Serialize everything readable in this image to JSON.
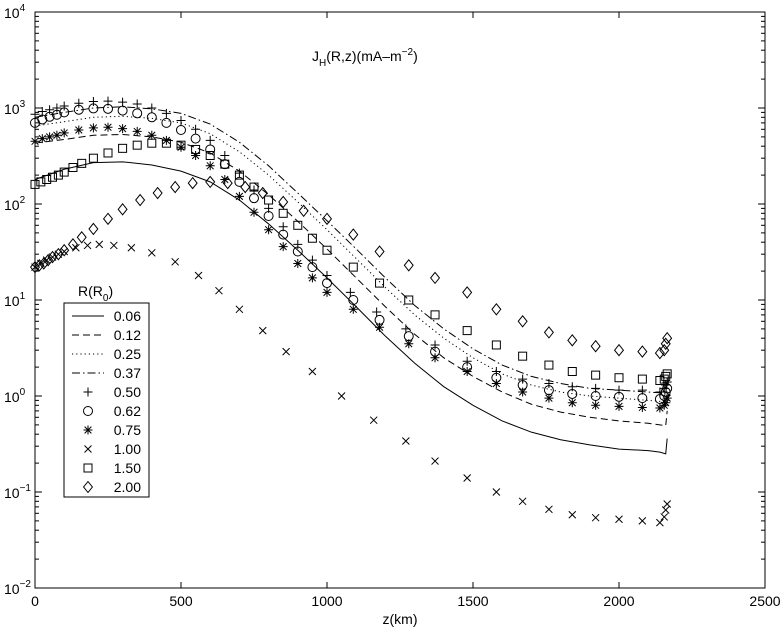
{
  "chart_data": {
    "type": "line",
    "title": "J_H(R,z)(mA–m^-2)",
    "title_parts": {
      "main": "J",
      "sub": "H",
      "args": "(R,z)(mA–m",
      "sup": "−2",
      "close": ")"
    },
    "xlabel": "z(km)",
    "ylabel": "",
    "xlim": [
      0,
      2500
    ],
    "ylim": [
      0.01,
      10000
    ],
    "yscale": "log",
    "grid": false,
    "x_ticks": [
      "0",
      "500",
      "1000",
      "1500",
      "2000",
      "2500"
    ],
    "y_ticks": [
      {
        "base": "10",
        "exp": "−2"
      },
      {
        "base": "10",
        "exp": "−1"
      },
      {
        "base": "10",
        "exp": "0"
      },
      {
        "base": "10",
        "exp": "1"
      },
      {
        "base": "10",
        "exp": "2"
      },
      {
        "base": "10",
        "exp": "3"
      },
      {
        "base": "10",
        "exp": "4"
      }
    ],
    "legend_title": {
      "main": "R(R",
      "sub": "0",
      "close": ")"
    },
    "legend_position": "left",
    "series": [
      {
        "name": "0.06",
        "style": "solid",
        "x": [
          0,
          100,
          200,
          300,
          400,
          500,
          600,
          700,
          800,
          900,
          1000,
          1100,
          1200,
          1300,
          1400,
          1500,
          1600,
          1700,
          1800,
          1900,
          2000,
          2100,
          2140,
          2160,
          2165
        ],
        "y": [
          180,
          230,
          270,
          275,
          255,
          220,
          170,
          110,
          62,
          33,
          17,
          8.5,
          4.2,
          2.2,
          1.25,
          0.8,
          0.55,
          0.42,
          0.35,
          0.31,
          0.28,
          0.27,
          0.26,
          0.25,
          0.36
        ]
      },
      {
        "name": "0.12",
        "style": "dashed",
        "x": [
          0,
          100,
          200,
          300,
          400,
          500,
          600,
          700,
          800,
          900,
          1000,
          1100,
          1200,
          1300,
          1400,
          1500,
          1600,
          1700,
          1800,
          1900,
          2000,
          2100,
          2140,
          2160,
          2165
        ],
        "y": [
          430,
          470,
          520,
          530,
          500,
          440,
          340,
          220,
          125,
          66,
          34,
          17,
          8.5,
          4.4,
          2.5,
          1.6,
          1.1,
          0.82,
          0.68,
          0.6,
          0.55,
          0.52,
          0.5,
          0.49,
          0.7
        ]
      },
      {
        "name": "0.25",
        "style": "dotted",
        "x": [
          0,
          100,
          200,
          300,
          400,
          500,
          600,
          700,
          800,
          900,
          1000,
          1100,
          1200,
          1300,
          1400,
          1500,
          1600,
          1700,
          1800,
          1900,
          2000,
          2100,
          2140,
          2160,
          2165
        ],
        "y": [
          650,
          720,
          800,
          820,
          780,
          700,
          540,
          350,
          200,
          105,
          54,
          27,
          13.5,
          7,
          4,
          2.5,
          1.7,
          1.3,
          1.1,
          1.0,
          0.95,
          0.9,
          0.88,
          0.86,
          1.2
        ]
      },
      {
        "name": "0.37",
        "style": "dashdot",
        "x": [
          0,
          100,
          200,
          300,
          400,
          500,
          600,
          700,
          800,
          900,
          1000,
          1100,
          1200,
          1300,
          1400,
          1500,
          1600,
          1700,
          1800,
          1900,
          2000,
          2100,
          2140,
          2160,
          2165
        ],
        "y": [
          800,
          900,
          1000,
          1030,
          980,
          880,
          680,
          440,
          250,
          130,
          67,
          34,
          17,
          8.8,
          5,
          3.1,
          2.1,
          1.6,
          1.35,
          1.2,
          1.15,
          1.1,
          1.08,
          1.05,
          1.45
        ]
      },
      {
        "name": "0.50",
        "style": "marker",
        "marker": "plus",
        "x": [
          0,
          25,
          50,
          75,
          100,
          150,
          200,
          250,
          300,
          350,
          400,
          450,
          500,
          550,
          600,
          650,
          700,
          750,
          800,
          850,
          900,
          950,
          1000,
          1080,
          1170,
          1270,
          1370,
          1480,
          1580,
          1670,
          1760,
          1840,
          1920,
          2000,
          2080,
          2140,
          2155,
          2160,
          2165
        ],
        "y": [
          860,
          920,
          960,
          1000,
          1050,
          1120,
          1170,
          1180,
          1150,
          1100,
          1000,
          880,
          740,
          600,
          460,
          320,
          210,
          140,
          90,
          58,
          38,
          26,
          18,
          12,
          7.5,
          5,
          3.4,
          2.3,
          1.8,
          1.5,
          1.35,
          1.25,
          1.2,
          1.15,
          1.15,
          1.1,
          1.2,
          1.3,
          1.4
        ]
      },
      {
        "name": "0.62",
        "style": "marker",
        "marker": "circle",
        "x": [
          0,
          25,
          50,
          75,
          100,
          150,
          200,
          250,
          300,
          350,
          400,
          450,
          500,
          550,
          600,
          650,
          700,
          750,
          800,
          850,
          900,
          950,
          1000,
          1090,
          1180,
          1280,
          1370,
          1480,
          1580,
          1670,
          1760,
          1840,
          1920,
          2000,
          2080,
          2140,
          2155,
          2160,
          2165
        ],
        "y": [
          700,
          760,
          810,
          850,
          900,
          960,
          990,
          980,
          940,
          880,
          800,
          700,
          590,
          480,
          370,
          260,
          170,
          115,
          75,
          48,
          32,
          22,
          15,
          10,
          6.2,
          4.2,
          2.9,
          2.0,
          1.55,
          1.3,
          1.15,
          1.05,
          1.0,
          0.98,
          0.95,
          0.93,
          1.0,
          1.1,
          1.2
        ]
      },
      {
        "name": "0.75",
        "style": "marker",
        "marker": "star",
        "x": [
          0,
          25,
          50,
          75,
          100,
          150,
          200,
          250,
          300,
          350,
          400,
          450,
          500,
          550,
          600,
          650,
          700,
          750,
          800,
          850,
          900,
          950,
          1000,
          1090,
          1180,
          1280,
          1370,
          1480,
          1580,
          1670,
          1760,
          1840,
          1920,
          2000,
          2080,
          2140,
          2155,
          2160,
          2165
        ],
        "y": [
          450,
          480,
          500,
          520,
          550,
          590,
          620,
          630,
          610,
          570,
          520,
          460,
          390,
          320,
          250,
          180,
          120,
          82,
          54,
          36,
          24,
          17,
          12,
          8,
          5.2,
          3.5,
          2.5,
          1.8,
          1.35,
          1.1,
          0.95,
          0.85,
          0.8,
          0.78,
          0.76,
          0.75,
          0.8,
          0.85,
          0.95
        ]
      },
      {
        "name": "1.00",
        "style": "marker",
        "marker": "x",
        "x": [
          0,
          20,
          40,
          60,
          80,
          100,
          140,
          180,
          220,
          270,
          330,
          400,
          480,
          560,
          630,
          700,
          780,
          860,
          950,
          1050,
          1160,
          1270,
          1370,
          1480,
          1580,
          1670,
          1760,
          1840,
          1920,
          2000,
          2080,
          2140,
          2155,
          2160,
          2165
        ],
        "y": [
          22,
          24,
          26,
          28,
          30,
          32,
          35,
          37,
          38,
          37,
          35,
          31,
          25,
          18,
          12.5,
          8,
          4.8,
          2.9,
          1.8,
          1.0,
          0.56,
          0.34,
          0.21,
          0.14,
          0.1,
          0.08,
          0.066,
          0.058,
          0.054,
          0.052,
          0.05,
          0.048,
          0.055,
          0.065,
          0.075
        ]
      },
      {
        "name": "1.50",
        "style": "marker",
        "marker": "square",
        "x": [
          0,
          20,
          40,
          60,
          80,
          100,
          130,
          160,
          200,
          250,
          300,
          350,
          400,
          450,
          500,
          550,
          600,
          650,
          700,
          750,
          800,
          850,
          900,
          950,
          1000,
          1090,
          1180,
          1280,
          1370,
          1480,
          1580,
          1670,
          1760,
          1840,
          1920,
          2000,
          2080,
          2140,
          2155,
          2160,
          2165
        ],
        "y": [
          160,
          170,
          180,
          190,
          200,
          215,
          240,
          265,
          300,
          340,
          380,
          410,
          430,
          430,
          410,
          370,
          320,
          260,
          200,
          150,
          110,
          80,
          60,
          44,
          33,
          22,
          15,
          10,
          7,
          4.8,
          3.4,
          2.6,
          2.1,
          1.8,
          1.65,
          1.55,
          1.5,
          1.45,
          1.5,
          1.6,
          1.7
        ]
      },
      {
        "name": "2.00",
        "style": "marker",
        "marker": "diamond",
        "x": [
          0,
          15,
          30,
          45,
          60,
          80,
          100,
          130,
          160,
          200,
          250,
          300,
          360,
          420,
          480,
          540,
          600,
          660,
          720,
          780,
          850,
          920,
          1000,
          1090,
          1180,
          1280,
          1370,
          1480,
          1580,
          1670,
          1760,
          1840,
          1920,
          2000,
          2080,
          2140,
          2155,
          2160,
          2165
        ],
        "y": [
          22,
          23,
          24,
          26,
          28,
          30,
          33,
          38,
          45,
          55,
          70,
          88,
          110,
          130,
          150,
          165,
          170,
          165,
          150,
          130,
          105,
          85,
          70,
          48,
          32,
          23,
          17,
          12,
          8,
          6,
          4.6,
          3.8,
          3.3,
          3.0,
          2.9,
          2.8,
          3.0,
          3.5,
          4.0
        ]
      }
    ]
  }
}
